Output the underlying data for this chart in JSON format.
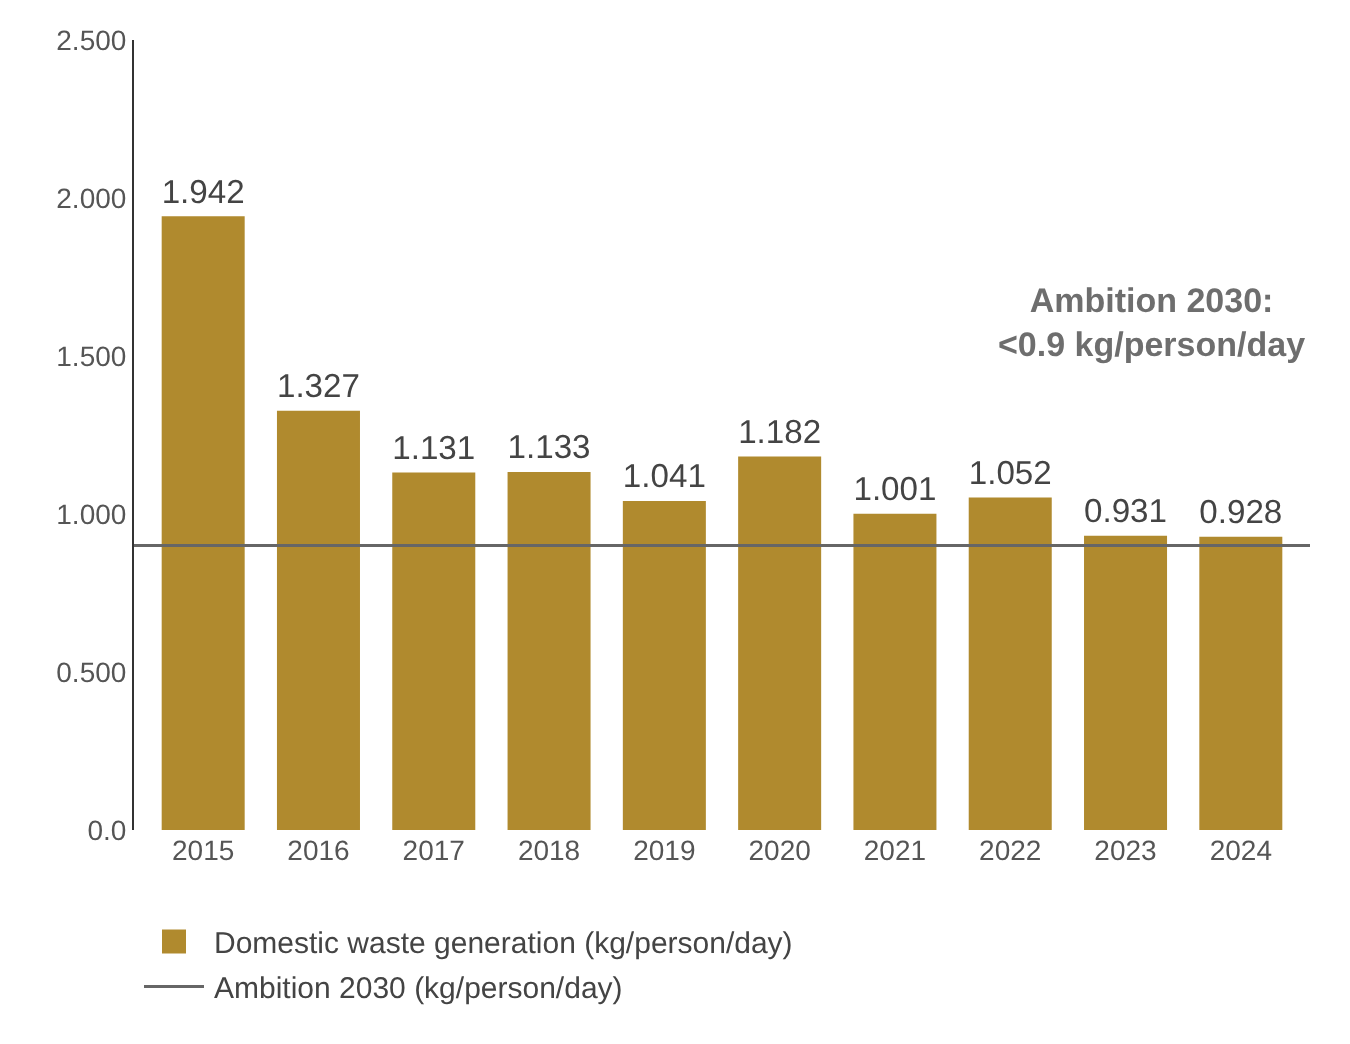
{
  "chart_data": {
    "type": "bar",
    "categories": [
      "2015",
      "2016",
      "2017",
      "2018",
      "2019",
      "2020",
      "2021",
      "2022",
      "2023",
      "2024"
    ],
    "series": [
      {
        "name": "Domestic waste generation (kg/person/day)",
        "color": "#b08a2e",
        "values": [
          1.942,
          1.327,
          1.131,
          1.133,
          1.041,
          1.182,
          1.001,
          1.052,
          0.931,
          0.928
        ]
      }
    ],
    "ylim": [
      0,
      2.5
    ],
    "yticks": [
      {
        "value": 0,
        "label": "0.0"
      },
      {
        "value": 0.5,
        "label": "0.500"
      },
      {
        "value": 1.0,
        "label": "1.000"
      },
      {
        "value": 1.5,
        "label": "1.500"
      },
      {
        "value": 2.0,
        "label": "2.000"
      },
      {
        "value": 2.5,
        "label": "2.500"
      }
    ],
    "ref_lines": [
      {
        "axis": "y",
        "value": 0.9,
        "label": "Ambition 2030 (kg/person/day)",
        "color": "#666666"
      }
    ],
    "annotations": [
      "Ambition 2030:\n<0.9 kg/person/day"
    ],
    "data_labels": true,
    "legend": "bottom"
  }
}
